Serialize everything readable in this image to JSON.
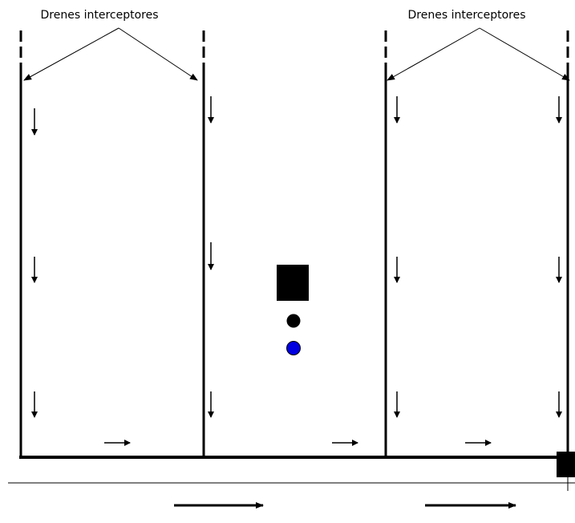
{
  "annotations": [
    {
      "text": "Drenes interceptores"
    },
    {
      "text": "Drenes interceptores"
    }
  ]
}
